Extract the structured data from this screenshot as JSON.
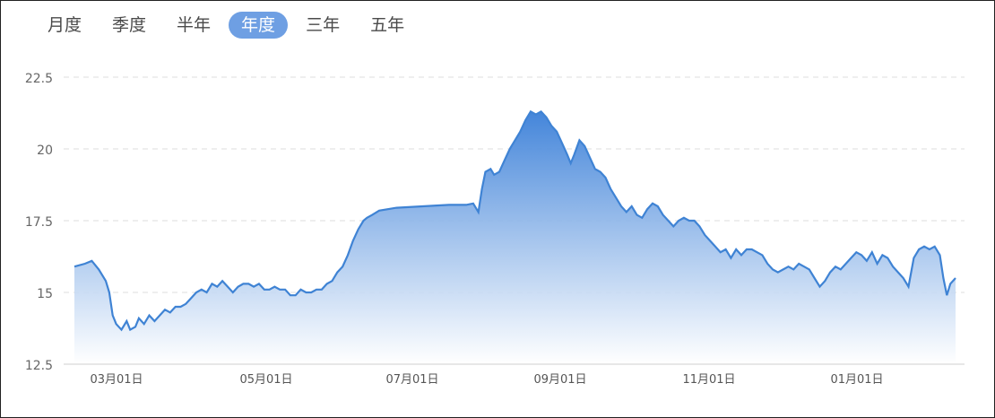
{
  "tabs": [
    {
      "label": "月度",
      "active": false
    },
    {
      "label": "季度",
      "active": false
    },
    {
      "label": "半年",
      "active": false
    },
    {
      "label": "年度",
      "active": true
    },
    {
      "label": "三年",
      "active": false
    },
    {
      "label": "五年",
      "active": false
    }
  ],
  "colors": {
    "line": "#3f83d4",
    "fill_top": "#3a7fd8",
    "fill_bottom": "#ffffff",
    "tab_active": "#6e9fe3",
    "grid": "#dcdcdc"
  },
  "chart_data": {
    "type": "area",
    "ylim": [
      12.5,
      22.5
    ],
    "yticks": [
      "22.5",
      "20",
      "17.5",
      "15",
      "12.5"
    ],
    "x_ticks": [
      "03月01日",
      "05月01日",
      "07月01日",
      "09月01日",
      "11月01日",
      "01月01日"
    ],
    "grid": "horizontal dashed",
    "series": [
      {
        "values": [
          [
            0,
            15.9
          ],
          [
            6,
            16.0
          ],
          [
            10,
            16.1
          ],
          [
            14,
            15.8
          ],
          [
            18,
            15.4
          ],
          [
            20,
            15.0
          ],
          [
            22,
            14.2
          ],
          [
            24,
            13.9
          ],
          [
            27,
            13.7
          ],
          [
            30,
            14.0
          ],
          [
            32,
            13.7
          ],
          [
            35,
            13.8
          ],
          [
            37,
            14.1
          ],
          [
            40,
            13.9
          ],
          [
            43,
            14.2
          ],
          [
            46,
            14.0
          ],
          [
            49,
            14.2
          ],
          [
            52,
            14.4
          ],
          [
            55,
            14.3
          ],
          [
            58,
            14.5
          ],
          [
            61,
            14.5
          ],
          [
            64,
            14.6
          ],
          [
            67,
            14.8
          ],
          [
            70,
            15.0
          ],
          [
            73,
            15.1
          ],
          [
            76,
            15.0
          ],
          [
            79,
            15.3
          ],
          [
            82,
            15.2
          ],
          [
            85,
            15.4
          ],
          [
            88,
            15.2
          ],
          [
            91,
            15.0
          ],
          [
            94,
            15.2
          ],
          [
            97,
            15.3
          ],
          [
            100,
            15.3
          ],
          [
            103,
            15.2
          ],
          [
            106,
            15.3
          ],
          [
            109,
            15.1
          ],
          [
            112,
            15.1
          ],
          [
            115,
            15.2
          ],
          [
            118,
            15.1
          ],
          [
            121,
            15.1
          ],
          [
            124,
            14.9
          ],
          [
            127,
            14.9
          ],
          [
            130,
            15.1
          ],
          [
            133,
            15.0
          ],
          [
            136,
            15.0
          ],
          [
            139,
            15.1
          ],
          [
            142,
            15.1
          ],
          [
            145,
            15.3
          ],
          [
            148,
            15.4
          ],
          [
            151,
            15.7
          ],
          [
            154,
            15.9
          ],
          [
            157,
            16.3
          ],
          [
            160,
            16.8
          ],
          [
            163,
            17.2
          ],
          [
            166,
            17.5
          ],
          [
            168,
            17.6
          ],
          [
            171,
            17.7
          ],
          [
            175,
            17.85
          ],
          [
            185,
            17.95
          ],
          [
            200,
            18.0
          ],
          [
            215,
            18.05
          ],
          [
            225,
            18.05
          ],
          [
            229,
            18.1
          ],
          [
            232,
            17.8
          ],
          [
            234,
            18.6
          ],
          [
            236,
            19.2
          ],
          [
            239,
            19.3
          ],
          [
            241,
            19.1
          ],
          [
            244,
            19.2
          ],
          [
            247,
            19.6
          ],
          [
            250,
            20.0
          ],
          [
            253,
            20.3
          ],
          [
            256,
            20.6
          ],
          [
            259,
            21.0
          ],
          [
            262,
            21.3
          ],
          [
            265,
            21.2
          ],
          [
            268,
            21.3
          ],
          [
            271,
            21.1
          ],
          [
            274,
            20.8
          ],
          [
            277,
            20.6
          ],
          [
            280,
            20.2
          ],
          [
            283,
            19.8
          ],
          [
            285,
            19.5
          ],
          [
            287,
            19.8
          ],
          [
            290,
            20.3
          ],
          [
            293,
            20.1
          ],
          [
            296,
            19.7
          ],
          [
            299,
            19.3
          ],
          [
            302,
            19.2
          ],
          [
            305,
            19.0
          ],
          [
            308,
            18.6
          ],
          [
            311,
            18.3
          ],
          [
            314,
            18.0
          ],
          [
            317,
            17.8
          ],
          [
            320,
            18.0
          ],
          [
            323,
            17.7
          ],
          [
            326,
            17.6
          ],
          [
            329,
            17.9
          ],
          [
            332,
            18.1
          ],
          [
            335,
            18.0
          ],
          [
            338,
            17.7
          ],
          [
            341,
            17.5
          ],
          [
            344,
            17.3
          ],
          [
            347,
            17.5
          ],
          [
            350,
            17.6
          ],
          [
            353,
            17.5
          ],
          [
            356,
            17.5
          ],
          [
            359,
            17.3
          ],
          [
            362,
            17.0
          ],
          [
            365,
            16.8
          ],
          [
            368,
            16.6
          ],
          [
            371,
            16.4
          ],
          [
            374,
            16.5
          ],
          [
            377,
            16.2
          ],
          [
            380,
            16.5
          ],
          [
            383,
            16.3
          ],
          [
            386,
            16.5
          ],
          [
            389,
            16.5
          ],
          [
            392,
            16.4
          ],
          [
            395,
            16.3
          ],
          [
            398,
            16.0
          ],
          [
            401,
            15.8
          ],
          [
            404,
            15.7
          ],
          [
            407,
            15.8
          ],
          [
            410,
            15.9
          ],
          [
            413,
            15.8
          ],
          [
            416,
            16.0
          ],
          [
            419,
            15.9
          ],
          [
            422,
            15.8
          ],
          [
            425,
            15.5
          ],
          [
            428,
            15.2
          ],
          [
            431,
            15.4
          ],
          [
            434,
            15.7
          ],
          [
            437,
            15.9
          ],
          [
            440,
            15.8
          ],
          [
            443,
            16.0
          ],
          [
            446,
            16.2
          ],
          [
            449,
            16.4
          ],
          [
            452,
            16.3
          ],
          [
            455,
            16.1
          ],
          [
            458,
            16.4
          ],
          [
            461,
            16.0
          ],
          [
            464,
            16.3
          ],
          [
            467,
            16.2
          ],
          [
            470,
            15.9
          ],
          [
            473,
            15.7
          ],
          [
            476,
            15.5
          ],
          [
            479,
            15.2
          ],
          [
            482,
            16.2
          ],
          [
            485,
            16.5
          ],
          [
            488,
            16.6
          ],
          [
            491,
            16.5
          ],
          [
            494,
            16.6
          ],
          [
            497,
            16.3
          ],
          [
            499,
            15.5
          ],
          [
            501,
            14.9
          ],
          [
            503,
            15.3
          ],
          [
            506,
            15.5
          ]
        ]
      }
    ]
  }
}
